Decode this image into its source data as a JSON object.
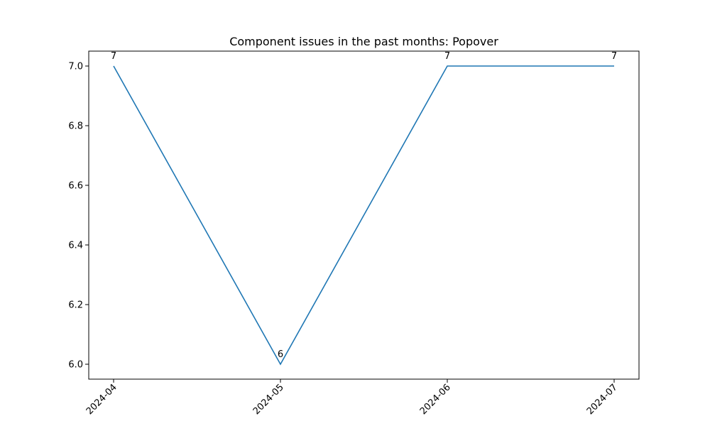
{
  "chart_data": {
    "type": "line",
    "title": "Component issues in the past months: Popover",
    "xlabel": "",
    "ylabel": "",
    "x": [
      "2024-04",
      "2024-05",
      "2024-06",
      "2024-07"
    ],
    "series": [
      {
        "values": [
          7,
          6,
          7,
          7
        ],
        "color": "#1f77b4",
        "data_labels": [
          "7",
          "6",
          "7",
          "7"
        ]
      }
    ],
    "ylim": [
      5.95,
      7.05
    ],
    "y_ticks": [
      6.0,
      6.2,
      6.4,
      6.6,
      6.8,
      7.0
    ],
    "y_tick_labels": [
      "6.0",
      "6.2",
      "6.4",
      "6.6",
      "6.8",
      "7.0"
    ],
    "x_tick_labels": [
      "2024-04",
      "2024-05",
      "2024-06",
      "2024-07"
    ],
    "grid": false,
    "legend": "none"
  }
}
